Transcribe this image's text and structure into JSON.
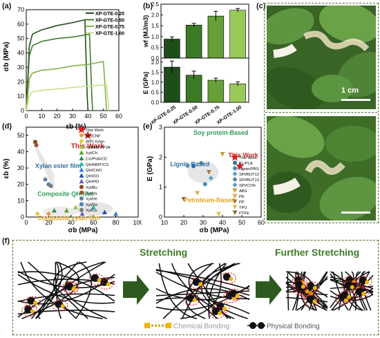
{
  "labels": {
    "a": "(a)",
    "b": "(b)",
    "c": "(c)",
    "d": "(d)",
    "e": "(e)",
    "f": "(f)"
  },
  "panel_a": {
    "ylabel": "σb (MPa)",
    "xlabel": "εb (%)",
    "xticks": [
      0,
      10,
      20,
      30,
      40,
      50,
      60
    ],
    "yticks": [
      0,
      10,
      20,
      30,
      40,
      50,
      60,
      70
    ],
    "legend": [
      "XP-GTE-0.25",
      "XP-GTE-0.50",
      "XP-GTE-0.75",
      "XP-GTE-1.00"
    ],
    "colors": [
      "#1f4d1a",
      "#3c7a25",
      "#7fb043",
      "#c9e08a"
    ]
  },
  "panel_b": {
    "top_ylabel": "wf (MJ/m3)",
    "top_yticks": [
      "0.0",
      "0.5",
      "1.0",
      "1.5",
      "2.0",
      "2.5"
    ],
    "bottom_ylabel": "E (GPa)",
    "bottom_yticks": [
      "0.0",
      "0.5",
      "1.0",
      "1.5",
      "2.0"
    ],
    "categories": [
      "XP-GTE-0.25",
      "XP-GTE-0.50",
      "XP-GTE-0.75",
      "XP-GTE-1.00"
    ]
  },
  "panel_c": {
    "scale_label": "1 cm"
  },
  "panel_d": {
    "ylabel": "εb (%)",
    "xlabel": "σb (MPa)",
    "xticks": [
      0,
      20,
      40,
      60,
      80,
      100
    ],
    "yticks": [
      0,
      10,
      20,
      30,
      40,
      50
    ],
    "annotations": [
      "This Work",
      "Xylan ester film",
      "Composite QH film",
      "Composite xylan film"
    ],
    "legend": [
      "This Work",
      "XH/CNF",
      "WPI-Xylan",
      "Xyl/MMT/PVA",
      "Xyl/Ch",
      "CX/PVA/CD",
      "QH/MMT/CS",
      "QH/CHO",
      "QH/GO",
      "QH/PEI",
      "Xyl/Bu",
      "Xyl/Va",
      "Xyl/He",
      "Xyl/De",
      "Xyl/La"
    ]
  },
  "panel_e": {
    "ylabel": "E (GPa)",
    "xlabel": "σb (MPa)",
    "xticks": [
      10,
      20,
      30,
      40,
      50,
      60
    ],
    "yticks": [
      0,
      1,
      2,
      3
    ],
    "annotations": [
      "Soy protein-Based",
      "Lignin-Based",
      "This Work",
      "Petroleum-Based"
    ],
    "legend": [
      "This Work",
      "KL/PLA",
      "Lignin/PBS",
      "SPI/BUT12",
      "SPI/BUT13",
      "SPI/CON",
      "ABS",
      "PE",
      "PP",
      "TPU",
      "PTFE"
    ]
  },
  "panel_f": {
    "step1": "Stretching",
    "step2": "Further Stretching",
    "legend_chem": "Chemical Bonding",
    "legend_phys": "Physical Bonding"
  },
  "chart_data": [
    {
      "type": "line",
      "xlabel": "εb (%)",
      "ylabel": "σb (MPa)",
      "xlim": [
        0,
        60
      ],
      "ylim": [
        0,
        70
      ],
      "series": [
        {
          "name": "XP-GTE-0.25",
          "x": [
            0,
            2,
            4,
            10,
            20,
            30,
            38,
            39.5,
            40
          ],
          "y": [
            0,
            45,
            53,
            56,
            59,
            61,
            63,
            10,
            0
          ]
        },
        {
          "name": "XP-GTE-0.50",
          "x": [
            0,
            2,
            4,
            10,
            20,
            30,
            41,
            42.5,
            43
          ],
          "y": [
            0,
            38,
            45,
            48,
            50,
            51,
            53,
            10,
            0
          ]
        },
        {
          "name": "XP-GTE-0.75",
          "x": [
            0,
            2,
            4,
            10,
            20,
            30,
            40,
            50,
            51.5,
            52
          ],
          "y": [
            0,
            22,
            26,
            28,
            29,
            31,
            32,
            34,
            10,
            0
          ]
        },
        {
          "name": "XP-GTE-1.00",
          "x": [
            0,
            2,
            4,
            10,
            20,
            30,
            40,
            52,
            53,
            53.5
          ],
          "y": [
            0,
            10,
            13,
            14,
            15,
            16,
            17,
            18,
            8,
            0
          ]
        }
      ]
    },
    {
      "type": "bar",
      "ylabel": "wf (MJ/m3)",
      "ylim": [
        0,
        2.5
      ],
      "categories": [
        "XP-GTE-0.25",
        "XP-GTE-0.50",
        "XP-GTE-0.75",
        "XP-GTE-1.00"
      ],
      "values": [
        0.88,
        1.53,
        1.95,
        2.22
      ],
      "errors": [
        0.1,
        0.08,
        0.22,
        0.08
      ]
    },
    {
      "type": "bar",
      "ylabel": "E (GPa)",
      "ylim": [
        0,
        2.2
      ],
      "categories": [
        "XP-GTE-0.25",
        "XP-GTE-0.50",
        "XP-GTE-0.75",
        "XP-GTE-1.00"
      ],
      "values": [
        1.75,
        1.35,
        1.1,
        0.92
      ],
      "errors": [
        0.3,
        0.2,
        0.1,
        0.1
      ]
    },
    {
      "type": "scatter",
      "xlabel": "σb (MPa)",
      "ylabel": "εb (%)",
      "xlim": [
        0,
        100
      ],
      "ylim": [
        0,
        55
      ],
      "series": [
        {
          "name": "This Work",
          "x": [
            55
          ],
          "y": [
            50
          ]
        },
        {
          "name": "XH/CNF",
          "x": [
            20
          ],
          "y": [
            2
          ]
        },
        {
          "name": "WPI-Xylan",
          "x": [
            10
          ],
          "y": [
            2
          ]
        },
        {
          "name": "Xyl/MMT/PVA",
          "x": [
            44
          ],
          "y": [
            6
          ]
        },
        {
          "name": "Xyl/Ch",
          "x": [
            36
          ],
          "y": [
            4
          ]
        },
        {
          "name": "CX/PVA/CD",
          "x": [
            25
          ],
          "y": [
            4
          ]
        },
        {
          "name": "QH/MMT/CS",
          "x": [
            60
          ],
          "y": [
            6
          ]
        },
        {
          "name": "QH/CHO",
          "x": [
            80
          ],
          "y": [
            2
          ]
        },
        {
          "name": "QH/GO",
          "x": [
            70
          ],
          "y": [
            3
          ]
        },
        {
          "name": "QH/PEI",
          "x": [
            50
          ],
          "y": [
            2
          ]
        },
        {
          "name": "Xyl/Bu",
          "x": [
            8
          ],
          "y": [
            46
          ]
        },
        {
          "name": "Xyl/Va",
          "x": [
            9
          ],
          "y": [
            44
          ]
        },
        {
          "name": "Xyl/He",
          "x": [
            17
          ],
          "y": [
            23
          ]
        },
        {
          "name": "Xyl/De",
          "x": [
            20
          ],
          "y": [
            20
          ]
        },
        {
          "name": "Xyl/La",
          "x": [
            22
          ],
          "y": [
            19
          ]
        }
      ]
    },
    {
      "type": "scatter",
      "xlabel": "σb (MPa)",
      "ylabel": "E (GPa)",
      "xlim": [
        10,
        60
      ],
      "ylim": [
        0,
        3
      ],
      "series": [
        {
          "name": "This Work",
          "x": [
            49
          ],
          "y": [
            1.7
          ]
        },
        {
          "name": "KL/PLA",
          "x": [
            25
          ],
          "y": [
            1.7
          ]
        },
        {
          "name": "Lignin/PBS",
          "x": [
            31
          ],
          "y": [
            1.1
          ]
        },
        {
          "name": "SPI/BUT12",
          "x": [
            34
          ],
          "y": [
            1.3
          ]
        },
        {
          "name": "SPI/BUT13",
          "x": [
            29
          ],
          "y": [
            1.8
          ]
        },
        {
          "name": "SPI/CON",
          "x": [
            22
          ],
          "y": [
            1.7
          ]
        },
        {
          "name": "ABS",
          "x": [
            40
          ],
          "y": [
            2.1
          ]
        },
        {
          "name": "PE",
          "x": [
            27
          ],
          "y": [
            0.8
          ]
        },
        {
          "name": "PP",
          "x": [
            33
          ],
          "y": [
            1.5
          ]
        },
        {
          "name": "TPU",
          "x": [
            38
          ],
          "y": [
            0.1
          ]
        },
        {
          "name": "PTFE",
          "x": [
            20
          ],
          "y": [
            0.6
          ]
        }
      ]
    }
  ]
}
